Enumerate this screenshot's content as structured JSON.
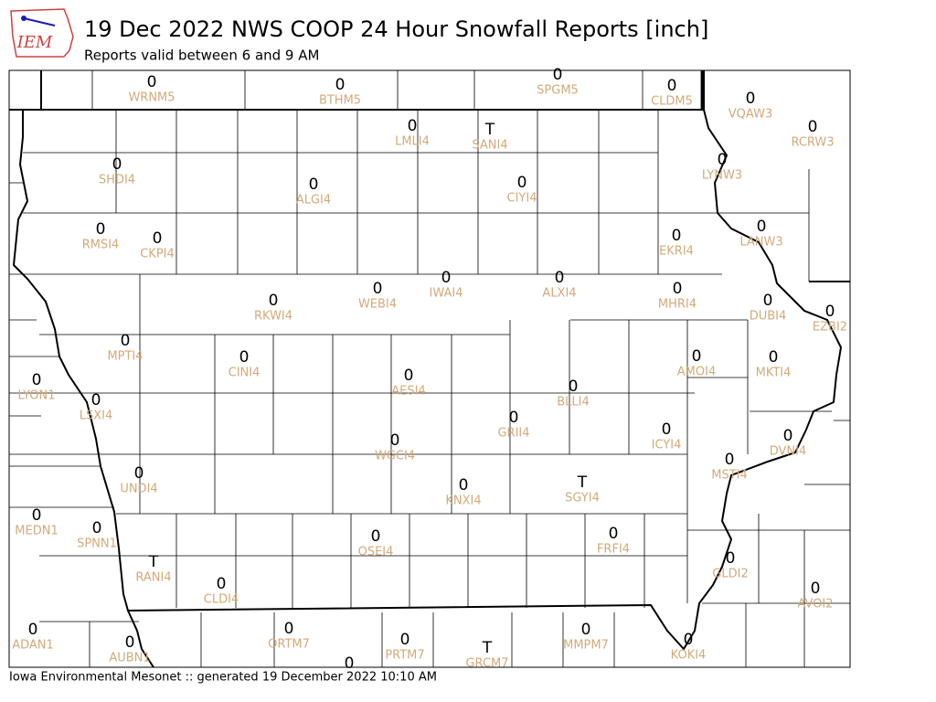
{
  "header": {
    "logo": "IEM",
    "title": "19 Dec 2022 NWS COOP 24 Hour Snowfall Reports [inch]",
    "subtitle": "Reports valid between 6 and 9 AM"
  },
  "stations": [
    {
      "value": "0",
      "id": "WRNM5"
    },
    {
      "value": "0",
      "id": "BTHM5"
    },
    {
      "value": "0",
      "id": "SPGM5"
    },
    {
      "value": "0",
      "id": "CLDM5"
    },
    {
      "value": "0",
      "id": "VQAW3"
    },
    {
      "value": "0",
      "id": "LMLI4"
    },
    {
      "value": "T",
      "id": "SANI4"
    },
    {
      "value": "0",
      "id": "RCRW3"
    },
    {
      "value": "0",
      "id": "SHDI4"
    },
    {
      "value": "0",
      "id": "LYNW3"
    },
    {
      "value": "0",
      "id": "ALGI4"
    },
    {
      "value": "0",
      "id": "CIYI4"
    },
    {
      "value": "0",
      "id": "RMSI4"
    },
    {
      "value": "0",
      "id": "CKPI4"
    },
    {
      "value": "0",
      "id": "EKRI4"
    },
    {
      "value": "0",
      "id": "LANW3"
    },
    {
      "value": "0",
      "id": "RKWI4"
    },
    {
      "value": "0",
      "id": "WEBI4"
    },
    {
      "value": "0",
      "id": "IWAI4"
    },
    {
      "value": "0",
      "id": "ALXI4"
    },
    {
      "value": "0",
      "id": "MHRI4"
    },
    {
      "value": "0",
      "id": "DUBI4"
    },
    {
      "value": "0",
      "id": "EZBI2"
    },
    {
      "value": "0",
      "id": "MPTI4"
    },
    {
      "value": "0",
      "id": "CINI4"
    },
    {
      "value": "0",
      "id": "AMOI4"
    },
    {
      "value": "0",
      "id": "MKTI4"
    },
    {
      "value": "0",
      "id": "LYON1"
    },
    {
      "value": "0",
      "id": "AESI4"
    },
    {
      "value": "0",
      "id": "BLLI4"
    },
    {
      "value": "0",
      "id": "LSXI4"
    },
    {
      "value": "0",
      "id": "GRII4"
    },
    {
      "value": "0",
      "id": "ICYI4"
    },
    {
      "value": "0",
      "id": "WGCI4"
    },
    {
      "value": "0",
      "id": "DVNI4"
    },
    {
      "value": "0",
      "id": "MSTI4"
    },
    {
      "value": "0",
      "id": "UNDI4"
    },
    {
      "value": "0",
      "id": "KNXI4"
    },
    {
      "value": "T",
      "id": "SGYI4"
    },
    {
      "value": "0",
      "id": "MEDN1"
    },
    {
      "value": "0",
      "id": "SPNN1"
    },
    {
      "value": "0",
      "id": "OSEI4"
    },
    {
      "value": "0",
      "id": "FRFI4"
    },
    {
      "value": "T",
      "id": "RANI4"
    },
    {
      "value": "0",
      "id": "CLDI4"
    },
    {
      "value": "0",
      "id": "GLDI2"
    },
    {
      "value": "0",
      "id": "AVOI2"
    },
    {
      "value": "0",
      "id": "ADAN1"
    },
    {
      "value": "0",
      "id": "AUBN1"
    },
    {
      "value": "0",
      "id": "ORTM7"
    },
    {
      "value": "0",
      "id": "PRTM7"
    },
    {
      "value": "T",
      "id": "GRCM7"
    },
    {
      "value": "0",
      "id": "MMPM7"
    },
    {
      "value": "0",
      "id": "KOKI4"
    },
    {
      "value": "0"
    }
  ],
  "footer": "Iowa Environmental Mesonet :: generated 19 December 2022 10:10 AM"
}
